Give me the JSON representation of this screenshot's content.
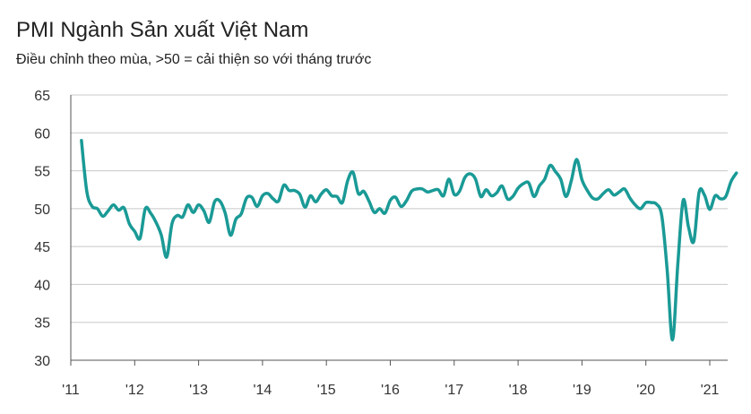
{
  "chart_data": {
    "type": "line",
    "title": "PMI Ngành Sản xuất Việt Nam",
    "subtitle": "Điều chỉnh theo mùa, >50 = cải thiện so với tháng trước",
    "xlabel": "",
    "ylabel": "",
    "ylim": [
      30,
      65
    ],
    "yticks": [
      30,
      35,
      40,
      45,
      50,
      55,
      60,
      65
    ],
    "xticks": [
      "'11",
      "'12",
      "'13",
      "'14",
      "'15",
      "'16",
      "'17",
      "'18",
      "'19",
      "'20",
      "'21"
    ],
    "grid": "horizontal",
    "legend": "none",
    "line_color": "#1a9a96",
    "series": [
      {
        "x_start": "2011-03",
        "frequency": "monthly",
        "values": [
          59.0,
          52.3,
          50.3,
          50.0,
          49.0,
          49.7,
          50.5,
          49.8,
          50.1,
          48.0,
          47.0,
          46.1,
          50.0,
          49.4,
          48.2,
          46.5,
          43.6,
          48.0,
          49.1,
          48.9,
          50.5,
          49.5,
          50.5,
          49.7,
          48.2,
          50.9,
          51.0,
          49.4,
          46.5,
          48.6,
          49.3,
          51.4,
          51.5,
          50.3,
          51.7,
          52.0,
          51.3,
          51.0,
          53.1,
          52.4,
          52.4,
          51.9,
          50.2,
          51.7,
          50.9,
          51.9,
          52.5,
          51.7,
          51.6,
          50.8,
          53.7,
          54.8,
          52.0,
          52.3,
          51.0,
          49.5,
          50.0,
          49.4,
          51.1,
          51.5,
          50.3,
          51.0,
          52.3,
          52.6,
          52.6,
          52.2,
          52.4,
          52.5,
          51.7,
          53.9,
          51.9,
          52.3,
          54.1,
          54.6,
          53.9,
          51.6,
          52.5,
          51.7,
          52.1,
          53.0,
          51.3,
          51.6,
          52.7,
          53.3,
          53.4,
          51.6,
          53.0,
          53.9,
          55.7,
          54.9,
          53.9,
          51.6,
          53.7,
          56.5,
          53.8,
          52.4,
          51.4,
          51.3,
          52.0,
          52.5,
          51.8,
          52.2,
          52.6,
          51.4,
          50.5,
          50.0,
          50.8,
          50.8,
          50.6,
          49.0,
          41.9,
          32.7,
          42.7,
          51.1,
          47.6,
          45.7,
          52.2,
          51.8,
          49.9,
          51.7,
          51.3,
          51.6,
          53.6,
          54.7
        ]
      }
    ]
  }
}
